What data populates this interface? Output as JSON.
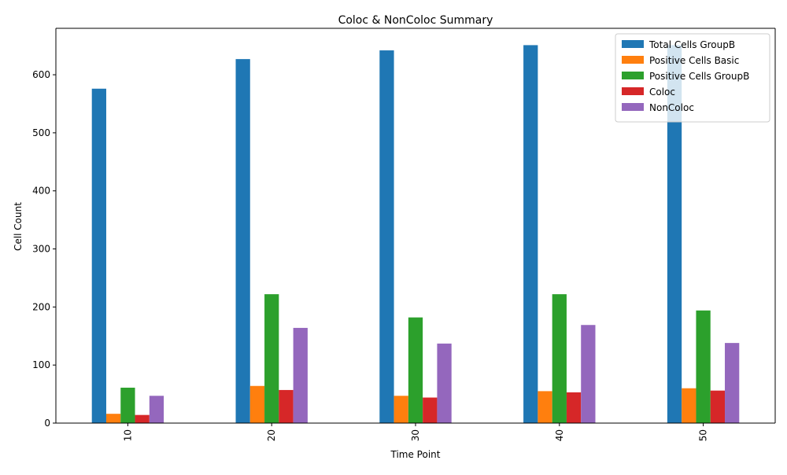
{
  "chart_data": {
    "type": "bar",
    "title": "Coloc & NonColoc Summary",
    "xlabel": "Time Point",
    "ylabel": "Cell Count",
    "categories": [
      "10",
      "20",
      "30",
      "40",
      "50"
    ],
    "ylim": [
      0,
      680
    ],
    "yticks": [
      0,
      100,
      200,
      300,
      400,
      500,
      600
    ],
    "grid": false,
    "legend_position": "top-right",
    "series": [
      {
        "name": "Total Cells GroupB",
        "color": "#1f77b4",
        "values": [
          576,
          627,
          642,
          651,
          651
        ]
      },
      {
        "name": "Positive Cells Basic",
        "color": "#ff7f0e",
        "values": [
          16,
          64,
          47,
          55,
          60
        ]
      },
      {
        "name": "Positive Cells GroupB",
        "color": "#2ca02c",
        "values": [
          61,
          222,
          182,
          222,
          194
        ]
      },
      {
        "name": "Coloc",
        "color": "#d62728",
        "values": [
          14,
          57,
          44,
          53,
          56
        ]
      },
      {
        "name": "NonColoc",
        "color": "#9467bd",
        "values": [
          47,
          164,
          137,
          169,
          138
        ]
      }
    ]
  }
}
